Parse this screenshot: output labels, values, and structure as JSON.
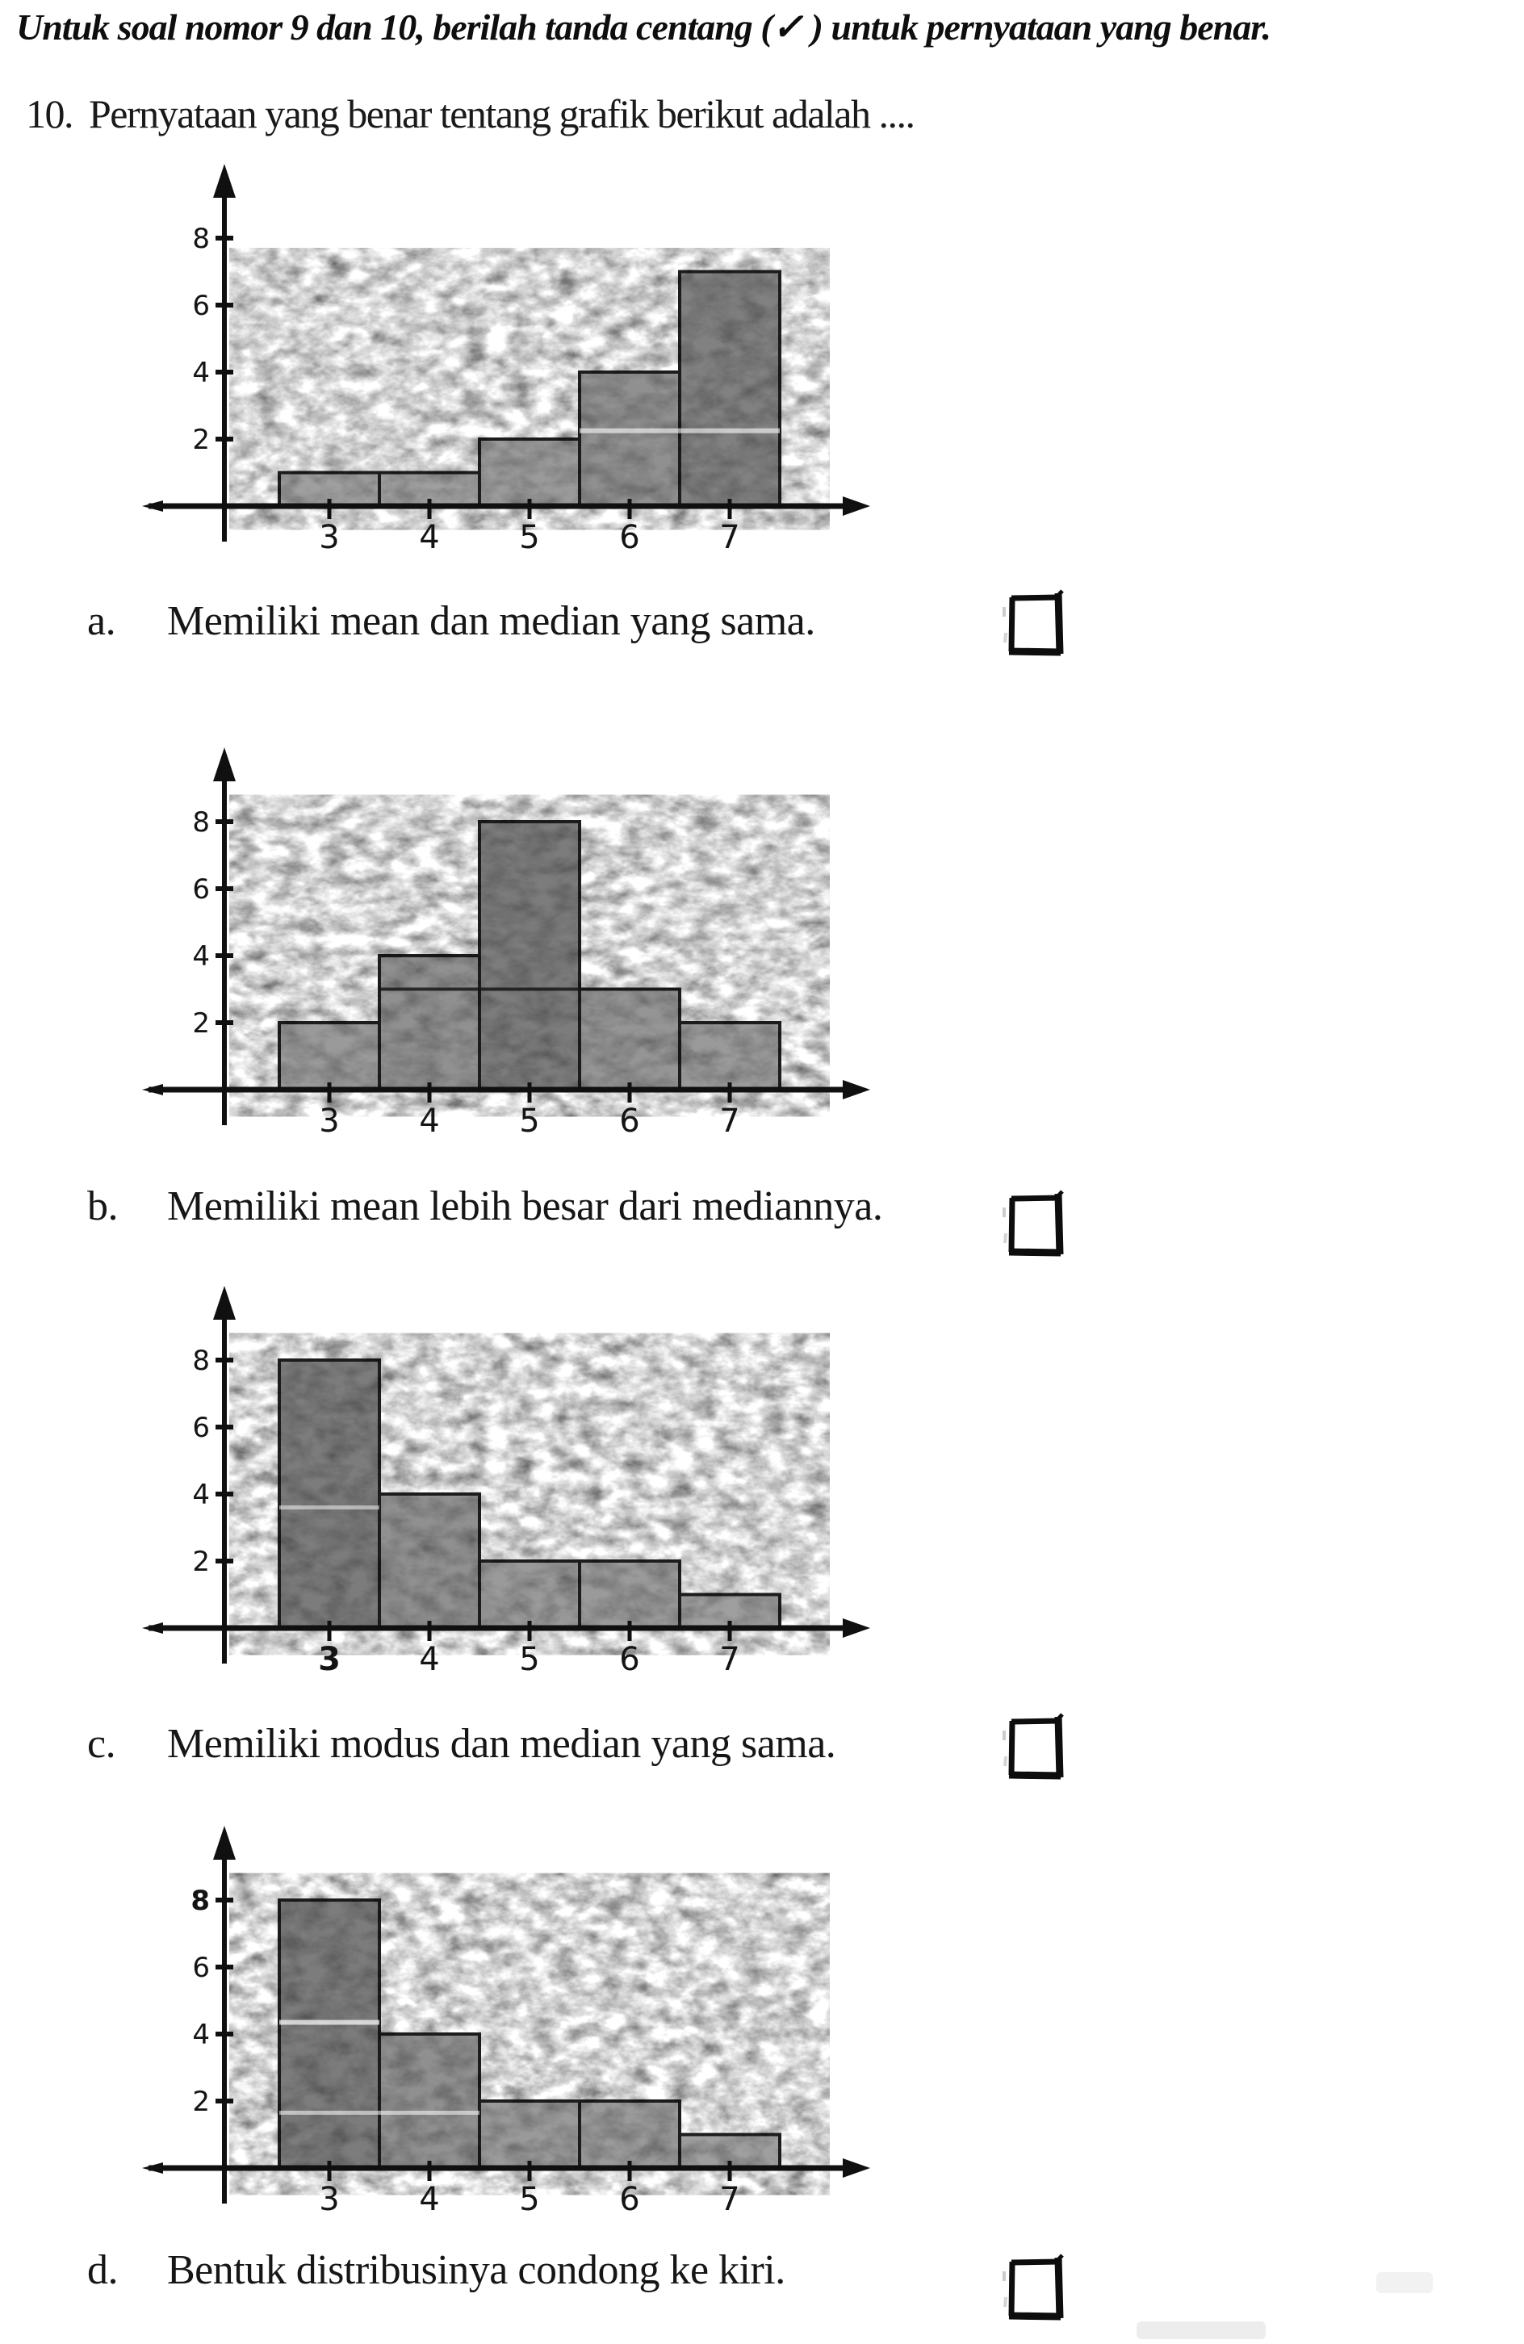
{
  "page": {
    "instruction_header": "Untuk soal nomor 9 dan 10, berilah tanda centang (✓ ) untuk pernyataan yang benar.",
    "question": {
      "number": "10.",
      "text": "Pernyataan yang benar tentang grafik berikut adalah ...."
    }
  },
  "options": [
    {
      "letter": "a.",
      "text": "Memiliki mean dan median yang sama.",
      "checked": false
    },
    {
      "letter": "b.",
      "text": "Memiliki mean lebih besar dari mediannya.",
      "checked": false
    },
    {
      "letter": "c.",
      "text": "Memiliki modus dan median yang sama.",
      "checked": false
    },
    {
      "letter": "d.",
      "text": "Bentuk distribusinya condong ke kiri.",
      "checked": false
    }
  ],
  "chart_data": [
    {
      "type": "bar",
      "option": "a",
      "title": "",
      "xlabel": "",
      "ylabel": "",
      "categories": [
        3,
        4,
        5,
        6,
        7
      ],
      "values": [
        1,
        1,
        2,
        4,
        7
      ],
      "y_ticks": [
        2,
        4,
        6,
        8
      ],
      "ylim": [
        0,
        10
      ],
      "xlim": [
        2.5,
        7.5
      ],
      "grid": false,
      "legend": "none",
      "axis_color": "#101010",
      "scan_streaks": [
        {
          "y": 2.25,
          "x1": 5.5,
          "x2": 7.5,
          "color": "#ffffff",
          "opacity": 0.6,
          "width": 6
        }
      ]
    },
    {
      "type": "bar",
      "option": "b",
      "title": "",
      "xlabel": "",
      "ylabel": "",
      "categories": [
        3,
        4,
        5,
        6,
        7
      ],
      "values": [
        2,
        4,
        8,
        3,
        2
      ],
      "y_ticks": [
        2,
        4,
        6,
        8
      ],
      "ylim": [
        0,
        10
      ],
      "xlim": [
        2.5,
        7.5
      ],
      "grid": false,
      "legend": "none",
      "axis_color": "#101010",
      "scan_streaks": [
        {
          "y": 3.0,
          "x1": 3.5,
          "x2": 6.5,
          "color": "#161616",
          "opacity": 0.85,
          "width": 4
        }
      ]
    },
    {
      "type": "bar",
      "option": "c",
      "title": "",
      "xlabel": "",
      "ylabel": "",
      "categories": [
        3,
        4,
        5,
        6,
        7
      ],
      "values": [
        8,
        4,
        2,
        2,
        1
      ],
      "y_ticks": [
        2,
        4,
        6,
        8
      ],
      "ylim": [
        0,
        10
      ],
      "xlim": [
        2.5,
        7.5
      ],
      "grid": false,
      "legend": "none",
      "axis_color": "#101010",
      "bold_x_tick": 3,
      "scan_streaks": [
        {
          "y": 3.6,
          "x1": 2.5,
          "x2": 3.5,
          "color": "#ffffff",
          "opacity": 0.5,
          "width": 5
        }
      ]
    },
    {
      "type": "bar",
      "option": "d",
      "title": "",
      "xlabel": "",
      "ylabel": "",
      "categories": [
        3,
        4,
        5,
        6,
        7
      ],
      "values": [
        8,
        4,
        2,
        2,
        1
      ],
      "y_ticks": [
        2,
        4,
        6,
        8
      ],
      "ylim": [
        0,
        10
      ],
      "xlim": [
        2.5,
        7.5
      ],
      "grid": false,
      "legend": "none",
      "axis_color": "#101010",
      "bold_y_tick": 8,
      "scan_streaks": [
        {
          "y": 4.35,
          "x1": 2.5,
          "x2": 3.5,
          "color": "#ffffff",
          "opacity": 0.7,
          "width": 6
        },
        {
          "y": 1.65,
          "x1": 2.5,
          "x2": 4.5,
          "color": "#ffffff",
          "opacity": 0.55,
          "width": 5
        }
      ]
    }
  ]
}
